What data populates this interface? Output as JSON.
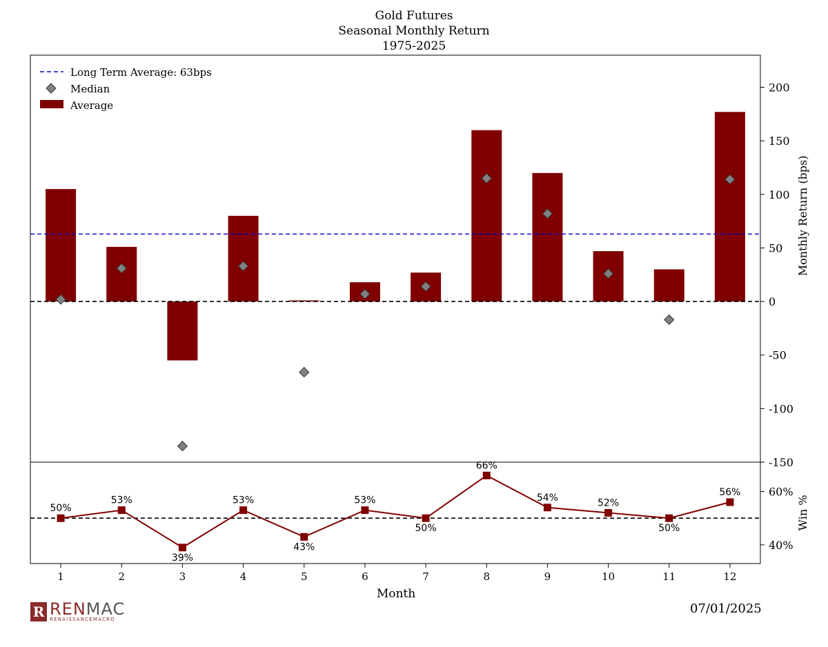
{
  "chart_data": {
    "title": "Gold Futures",
    "subtitle": "Seasonal Monthly Return",
    "period": "1975-2025",
    "xlabel": "Month",
    "categories": [
      "1",
      "2",
      "3",
      "4",
      "5",
      "6",
      "7",
      "8",
      "9",
      "10",
      "11",
      "12"
    ],
    "legend": {
      "placement": "top-left",
      "entries": [
        "Long Term Average: 63bps",
        "Median",
        "Average"
      ]
    },
    "top_panel": {
      "type": "bar",
      "ylabel": "Monthly Return (bps)",
      "ylim": [
        -150,
        230
      ],
      "yticks": [
        200,
        150,
        100,
        50,
        0,
        -50,
        -100,
        -150
      ],
      "long_term_average": 63,
      "series": [
        {
          "name": "Average",
          "type": "bar",
          "color": "#800000",
          "values": [
            105,
            51,
            -55,
            80,
            1,
            18,
            27,
            160,
            120,
            47,
            30,
            177
          ]
        },
        {
          "name": "Median",
          "type": "scatter",
          "marker": "diamond",
          "color": "#808080",
          "values": [
            2,
            31,
            -135,
            33,
            -66,
            7,
            14,
            115,
            82,
            26,
            -17,
            114
          ]
        }
      ]
    },
    "bottom_panel": {
      "type": "line",
      "ylabel": "Win %",
      "ylim": [
        33,
        71
      ],
      "yticks": [
        60,
        40
      ],
      "ytick_labels": [
        "60%",
        "40%"
      ],
      "reference": 50,
      "color": "#800000",
      "values": [
        50,
        53,
        39,
        53,
        43,
        53,
        50,
        66,
        54,
        52,
        50,
        56
      ],
      "labels": [
        "50%",
        "53%",
        "39%",
        "53%",
        "43%",
        "53%",
        "50%",
        "66%",
        "54%",
        "52%",
        "50%",
        "56%"
      ]
    }
  },
  "footer": {
    "logo_mark": "R",
    "logo_name_a": "REN",
    "logo_name_b": "MAC",
    "logo_sub": "RENAISSANCEMACRO",
    "date": "07/01/2025"
  }
}
